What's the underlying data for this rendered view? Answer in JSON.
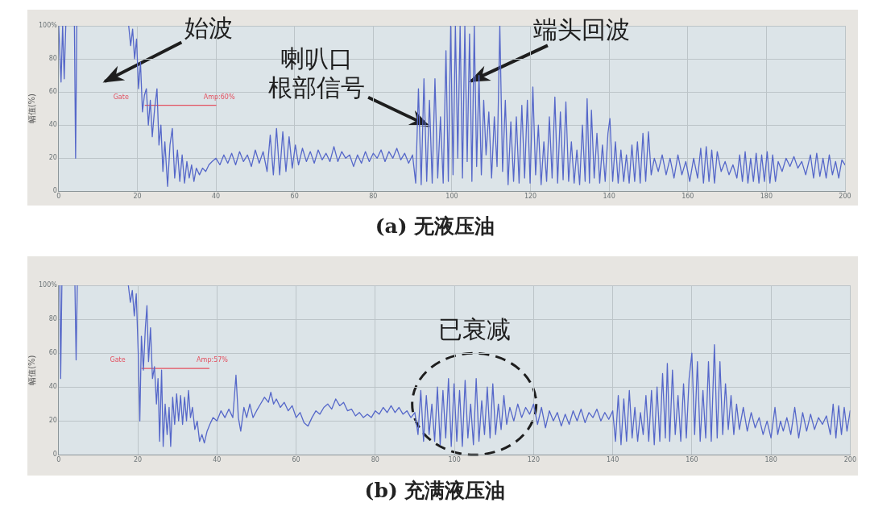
{
  "chart_data": [
    {
      "type": "line",
      "title": "(a) 无液压油",
      "ylabel": "幅值(%)",
      "xlim": [
        0,
        200
      ],
      "xticks": [
        0,
        20,
        40,
        60,
        80,
        100,
        120,
        140,
        160,
        180,
        200
      ],
      "ylim": [
        0,
        100
      ],
      "yticks": [
        0,
        20,
        40,
        60,
        80,
        {
          "value": 100,
          "label": "100%"
        }
      ],
      "grid": true,
      "series": [
        {
          "color": "#5567c9",
          "x": [
            0,
            0.6,
            1,
            1.4,
            1.8,
            3,
            4,
            4.3,
            4.6,
            10,
            17.8,
            18.3,
            18.8,
            19.3,
            19.8,
            20.3,
            20.8,
            21.3,
            21.8,
            22.3,
            22.8,
            23.3,
            23.8,
            24.4,
            25,
            25.5,
            26,
            26.5,
            27,
            27.7,
            28.3,
            28.9,
            29.5,
            30.2,
            30.8,
            31.4,
            32,
            32.6,
            33.2,
            33.8,
            34.4,
            35,
            35.8,
            36.6,
            37.4,
            38.2,
            39,
            40,
            41,
            42,
            43,
            44,
            45,
            46,
            47,
            48,
            49,
            50,
            51,
            52,
            53,
            53.8,
            54.6,
            55.4,
            56.2,
            57,
            57.8,
            58.6,
            59.4,
            60.2,
            61,
            62,
            63,
            64,
            65,
            66,
            67,
            68,
            69,
            70,
            71,
            72,
            73,
            74,
            75,
            76,
            77,
            78,
            79,
            80,
            81,
            82,
            83,
            84,
            85,
            86,
            87,
            88,
            89,
            90,
            90.8,
            91.5,
            92.2,
            92.9,
            93.6,
            94.3,
            95,
            95.7,
            96.4,
            97.1,
            97.8,
            98.5,
            99.1,
            99.7,
            100.3,
            100.9,
            101.5,
            102.1,
            102.7,
            103.3,
            103.9,
            104.5,
            105.1,
            105.7,
            106.3,
            106.9,
            107.5,
            108.1,
            108.7,
            109.4,
            110.1,
            110.8,
            111.5,
            112.2,
            112.9,
            113.6,
            114.3,
            115,
            115.7,
            116.4,
            117.1,
            117.8,
            118.5,
            119.2,
            119.9,
            120.6,
            121.3,
            122,
            122.7,
            123.4,
            124.1,
            124.8,
            125.5,
            126.2,
            126.9,
            127.6,
            128.3,
            129,
            129.7,
            130.4,
            131.1,
            131.8,
            132.5,
            133.2,
            133.9,
            134.4,
            135,
            135.5,
            136.2,
            136.9,
            137.6,
            138.3,
            139,
            139.7,
            140.2,
            140.9,
            141.6,
            142.3,
            143,
            143.7,
            144.4,
            145.1,
            145.8,
            146.5,
            147.2,
            147.9,
            148.6,
            149.3,
            150,
            150.7,
            151.5,
            152.5,
            153.5,
            154.5,
            155.5,
            156.5,
            157.5,
            158.5,
            159.5,
            160.5,
            161.5,
            162.5,
            163.3,
            164,
            164.7,
            165.4,
            166.1,
            166.8,
            167.5,
            168.5,
            169.5,
            170.5,
            171.5,
            172.5,
            173.2,
            173.9,
            174.6,
            175.3,
            176,
            176.7,
            177.4,
            178.1,
            178.8,
            179.5,
            180.2,
            180.9,
            181.6,
            182.3,
            183,
            184,
            185,
            186,
            187,
            188,
            189,
            190,
            191.2,
            192,
            192.8,
            193.6,
            194.4,
            195.2,
            196,
            196.8,
            197.6,
            198.4,
            199.2,
            200
          ],
          "values": [
            100,
            66,
            100,
            68,
            100,
            null,
            100,
            20,
            100,
            null,
            100,
            88,
            98,
            80,
            92,
            62,
            78,
            48,
            58,
            62,
            40,
            55,
            33,
            50,
            62,
            28,
            40,
            12,
            30,
            3,
            28,
            38,
            8,
            25,
            6,
            22,
            5,
            18,
            8,
            16,
            6,
            14,
            10,
            14,
            12,
            16,
            18,
            20,
            16,
            22,
            17,
            23,
            16,
            24,
            18,
            22,
            15,
            25,
            17,
            24,
            12,
            34,
            10,
            38,
            10,
            36,
            12,
            33,
            14,
            28,
            16,
            26,
            18,
            24,
            17,
            25,
            19,
            23,
            18,
            27,
            18,
            24,
            20,
            22,
            15,
            22,
            17,
            24,
            18,
            23,
            20,
            25,
            18,
            24,
            20,
            26,
            19,
            23,
            17,
            22,
            5,
            62,
            4,
            68,
            6,
            55,
            5,
            68,
            8,
            45,
            5,
            85,
            6,
            100,
            10,
            100,
            20,
            100,
            8,
            100,
            18,
            95,
            6,
            100,
            15,
            70,
            10,
            55,
            22,
            48,
            8,
            45,
            15,
            100,
            12,
            55,
            4,
            42,
            6,
            45,
            5,
            52,
            8,
            55,
            5,
            63,
            10,
            40,
            4,
            30,
            6,
            45,
            8,
            57,
            5,
            48,
            7,
            54,
            6,
            30,
            5,
            25,
            4,
            40,
            6,
            56,
            5,
            49,
            8,
            35,
            5,
            28,
            6,
            35,
            44,
            6,
            30,
            5,
            25,
            6,
            22,
            5,
            28,
            6,
            30,
            5,
            35,
            6,
            36,
            10,
            20,
            12,
            22,
            10,
            20,
            8,
            22,
            10,
            18,
            6,
            20,
            8,
            26,
            5,
            27,
            6,
            25,
            5,
            24,
            12,
            18,
            10,
            16,
            8,
            22,
            6,
            24,
            5,
            20,
            6,
            23,
            5,
            22,
            6,
            24,
            5,
            22,
            6,
            18,
            12,
            20,
            15,
            21,
            14,
            18,
            10,
            22,
            8,
            23,
            9,
            20,
            8,
            22,
            10,
            18,
            8,
            19,
            16
          ]
        },
        {
          "color": "#e3505f",
          "x": [
            22,
            40
          ],
          "values": [
            52,
            52
          ]
        }
      ],
      "annotations": [
        "始波",
        {
          "text": "喇叭口根部信号",
          "x": 94.5,
          "y": 39
        },
        {
          "text": "端头回波",
          "x": 104.3,
          "y": 66
        },
        {
          "text": "Gate",
          "x": 22,
          "y": 52
        },
        {
          "text": "Amp:60%",
          "x": 40,
          "y": 52
        }
      ]
    },
    {
      "type": "line",
      "title": "(b) 充满液压油",
      "ylabel": "幅值(%)",
      "xlim": [
        0,
        200
      ],
      "xticks": [
        0,
        20,
        40,
        60,
        80,
        100,
        120,
        140,
        160,
        180,
        200
      ],
      "ylim": [
        0,
        100
      ],
      "yticks": [
        0,
        20,
        40,
        60,
        80,
        {
          "value": 100,
          "label": "100%"
        }
      ],
      "grid": true,
      "series": [
        {
          "color": "#5567c9",
          "x": [
            0.3,
            0.5,
            0.8,
            2,
            4.1,
            4.4,
            4.7,
            10,
            17.6,
            18.1,
            18.6,
            19.1,
            19.6,
            20.1,
            20.5,
            20.9,
            21.4,
            21.9,
            22.3,
            22.7,
            23.2,
            23.7,
            24.2,
            24.7,
            25.1,
            25.5,
            26,
            26.4,
            26.9,
            27.4,
            27.9,
            28.3,
            28.8,
            29.3,
            29.8,
            30.3,
            30.8,
            31.3,
            31.8,
            32.3,
            32.8,
            33.3,
            33.8,
            34.4,
            35,
            35.6,
            36.2,
            36.8,
            37.5,
            38.2,
            39,
            40,
            41,
            42,
            43,
            44,
            44.8,
            45.4,
            46,
            46.8,
            47.5,
            48.3,
            49.1,
            50,
            51,
            52,
            53,
            53.6,
            54.3,
            55,
            56,
            57,
            58,
            59,
            60,
            61,
            62,
            63,
            64,
            65,
            66,
            67,
            68,
            69,
            70,
            71,
            72,
            73,
            74,
            75,
            76,
            77,
            78,
            79,
            80,
            81,
            82,
            83,
            84,
            85,
            86,
            87,
            88,
            89,
            90,
            90.8,
            91.5,
            92.2,
            92.9,
            93.6,
            94.3,
            95,
            95.7,
            96.4,
            97.1,
            97.8,
            98.5,
            99.2,
            99.9,
            100.6,
            101.3,
            102,
            102.7,
            103.4,
            104.1,
            104.8,
            105.5,
            106.2,
            106.9,
            107.6,
            108.3,
            109,
            109.7,
            110.4,
            111.1,
            111.8,
            112.5,
            113.2,
            114,
            115,
            116,
            117,
            118,
            119,
            120,
            121,
            122,
            123,
            124,
            125,
            126,
            127,
            128,
            129,
            130,
            131,
            132,
            133,
            134,
            135,
            136,
            137,
            138,
            139,
            140,
            140.7,
            141.4,
            142.1,
            142.8,
            143.5,
            144.2,
            144.9,
            145.6,
            146.3,
            147,
            147.7,
            148.4,
            149.1,
            149.8,
            150.5,
            151.2,
            151.9,
            152.6,
            153.3,
            153.8,
            154.4,
            155.1,
            155.8,
            156.5,
            157.2,
            157.9,
            158.6,
            159.3,
            160,
            160.7,
            161.4,
            162.1,
            162.8,
            163.5,
            164.2,
            164.9,
            165.7,
            166.4,
            167.1,
            167.8,
            168.5,
            169.2,
            169.9,
            170.6,
            171.3,
            172,
            173,
            174,
            175,
            176,
            177,
            178,
            179,
            180,
            181,
            181.7,
            182.4,
            183.1,
            184,
            185,
            186,
            187,
            188,
            189,
            190,
            191,
            192,
            193,
            194,
            195,
            195.7,
            196.4,
            197.1,
            197.8,
            198.5,
            199.2,
            200
          ],
          "values": [
            100,
            45,
            100,
            null,
            100,
            56,
            100,
            null,
            100,
            90,
            97,
            82,
            95,
            60,
            20,
            70,
            50,
            75,
            88,
            55,
            75,
            45,
            52,
            30,
            45,
            8,
            50,
            5,
            30,
            12,
            28,
            5,
            34,
            18,
            36,
            20,
            35,
            18,
            34,
            20,
            38,
            22,
            28,
            15,
            20,
            8,
            12,
            7,
            14,
            18,
            22,
            20,
            26,
            22,
            27,
            22,
            47,
            22,
            14,
            28,
            22,
            30,
            22,
            26,
            30,
            34,
            31,
            37,
            30,
            33,
            28,
            31,
            26,
            29,
            22,
            25,
            19,
            17,
            22,
            26,
            24,
            28,
            30,
            27,
            33,
            29,
            31,
            26,
            27,
            23,
            25,
            22,
            24,
            22,
            26,
            24,
            28,
            25,
            29,
            25,
            28,
            24,
            26,
            22,
            25,
            12,
            38,
            8,
            35,
            12,
            30,
            8,
            40,
            6,
            38,
            10,
            45,
            5,
            42,
            8,
            38,
            5,
            44,
            10,
            30,
            6,
            45,
            8,
            32,
            12,
            40,
            10,
            42,
            12,
            30,
            15,
            35,
            18,
            28,
            20,
            30,
            22,
            28,
            24,
            30,
            18,
            28,
            16,
            26,
            20,
            25,
            17,
            24,
            18,
            26,
            20,
            27,
            19,
            25,
            22,
            27,
            20,
            25,
            21,
            26,
            8,
            35,
            6,
            33,
            8,
            38,
            10,
            28,
            8,
            25,
            12,
            35,
            8,
            38,
            6,
            40,
            8,
            48,
            10,
            54,
            8,
            50,
            12,
            35,
            8,
            42,
            10,
            45,
            60,
            12,
            55,
            8,
            38,
            10,
            55,
            8,
            65,
            10,
            55,
            12,
            42,
            15,
            35,
            12,
            30,
            15,
            28,
            14,
            25,
            16,
            22,
            12,
            20,
            10,
            28,
            12,
            20,
            14,
            22,
            12,
            28,
            10,
            25,
            14,
            24,
            15,
            22,
            18,
            23,
            12,
            30,
            10,
            29,
            12,
            28,
            14,
            26
          ]
        },
        {
          "color": "#e3505f",
          "x": [
            21,
            38
          ],
          "values": [
            51,
            51
          ]
        }
      ],
      "annotations": [
        {
          "text": "已衰减",
          "x": 105,
          "y": 30
        },
        {
          "text": "Gate",
          "x": 21,
          "y": 51
        },
        {
          "text": "Amp:57%",
          "x": 38,
          "y": 51
        }
      ]
    }
  ]
}
